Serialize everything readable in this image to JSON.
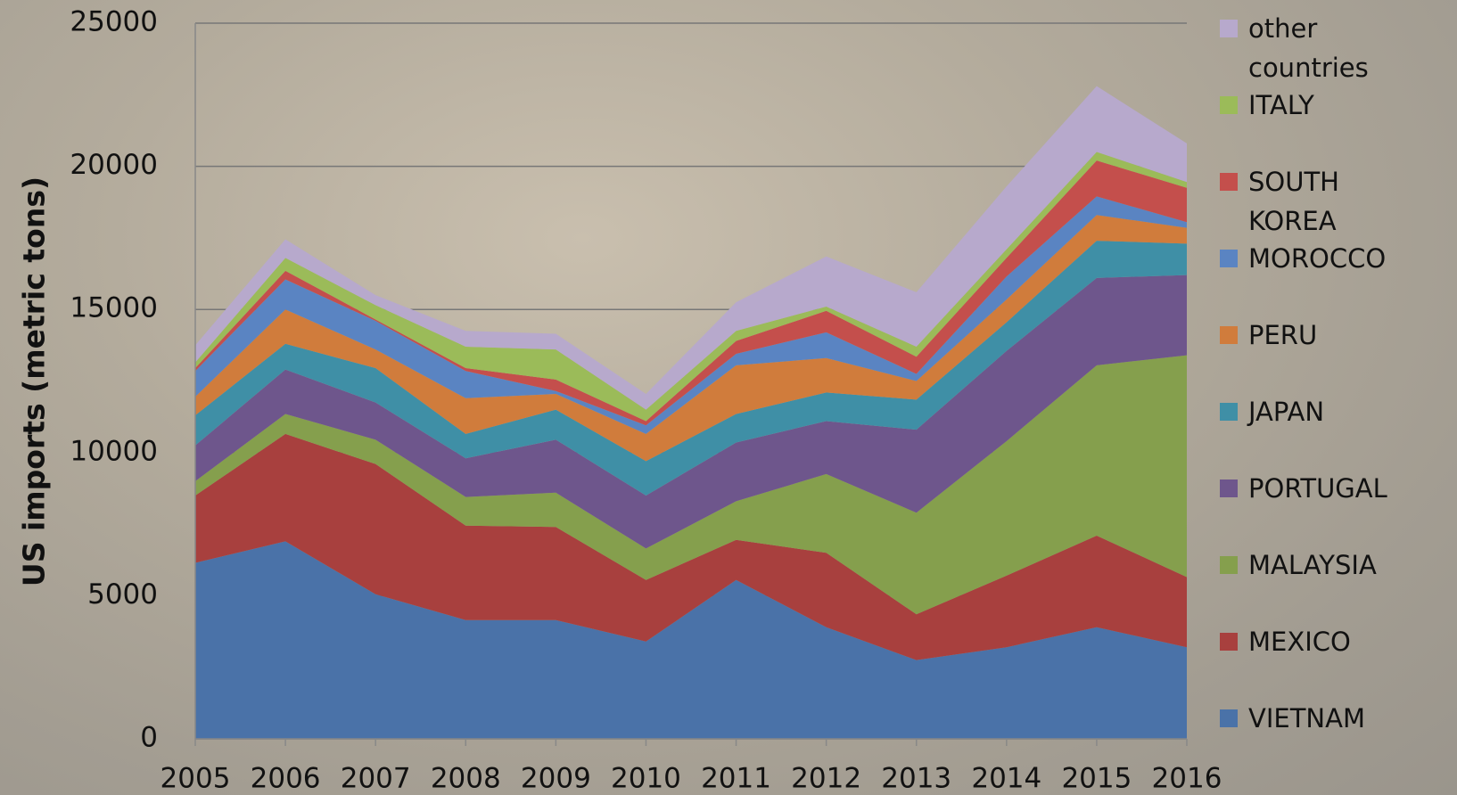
{
  "chart_data": {
    "type": "stacked-area",
    "y_label": "US imports (metric tons)",
    "categories": [
      "2005",
      "2006",
      "2007",
      "2008",
      "2009",
      "2010",
      "2011",
      "2012",
      "2013",
      "2014",
      "2015",
      "2016"
    ],
    "ylim": [
      0,
      25000
    ],
    "yticks": [
      0,
      5000,
      10000,
      15000,
      20000,
      25000
    ],
    "grid": true,
    "series": [
      {
        "name": "VIETNAM",
        "color": "#4a72a8",
        "values": [
          6150,
          6900,
          5050,
          4150,
          4150,
          3400,
          5550,
          3900,
          2750,
          3200,
          3900,
          3200
        ]
      },
      {
        "name": "MEXICO",
        "color": "#a8403e",
        "values": [
          2350,
          3750,
          4550,
          3300,
          3250,
          2150,
          1400,
          2600,
          1600,
          2500,
          3200,
          2450
        ]
      },
      {
        "name": "MALAYSIA",
        "color": "#859f4d",
        "values": [
          500,
          700,
          850,
          1000,
          1200,
          1100,
          1350,
          2750,
          3550,
          4700,
          5950,
          7750
        ]
      },
      {
        "name": "PORTUGAL",
        "color": "#6e568c",
        "values": [
          1250,
          1550,
          1300,
          1350,
          1850,
          1850,
          2050,
          1850,
          2900,
          3150,
          3050,
          2800
        ]
      },
      {
        "name": "JAPAN",
        "color": "#3f8fa6",
        "values": [
          1050,
          900,
          1200,
          850,
          1050,
          1200,
          1000,
          1000,
          1050,
          1000,
          1300,
          1100
        ]
      },
      {
        "name": "PERU",
        "color": "#d07c3c",
        "values": [
          650,
          1200,
          650,
          1250,
          550,
          950,
          1700,
          1200,
          650,
          800,
          900,
          550
        ]
      },
      {
        "name": "MOROCCO",
        "color": "#5a84c2",
        "values": [
          900,
          1050,
          1000,
          950,
          100,
          300,
          400,
          900,
          250,
          800,
          650,
          200
        ]
      },
      {
        "name": "SOUTH KOREA",
        "color": "#c44f4c",
        "values": [
          100,
          300,
          50,
          100,
          400,
          150,
          450,
          750,
          600,
          650,
          1250,
          1200
        ]
      },
      {
        "name": "ITALY",
        "color": "#9bbb59",
        "values": [
          200,
          450,
          500,
          750,
          1050,
          400,
          350,
          150,
          350,
          300,
          300,
          200
        ]
      },
      {
        "name": "other countries",
        "color": "#b7a9cc",
        "values": [
          600,
          650,
          350,
          550,
          550,
          550,
          1000,
          1750,
          1900,
          2200,
          2300,
          1350
        ]
      }
    ]
  }
}
